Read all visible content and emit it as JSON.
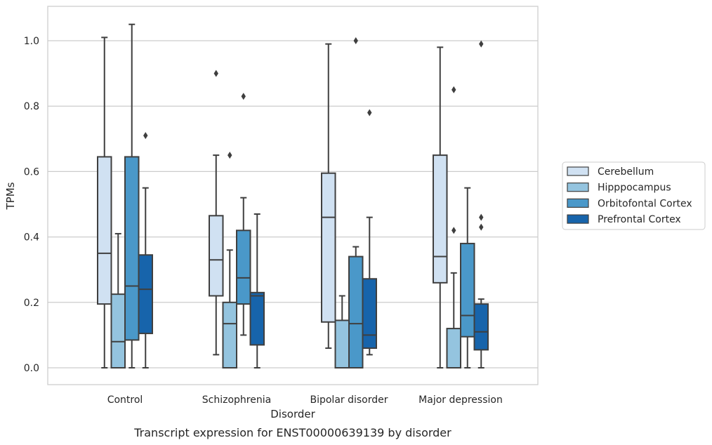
{
  "chart_data": {
    "type": "boxplot",
    "caption": "Transcript expression for ENST00000639139 by disorder",
    "xlabel": "Disorder",
    "ylabel": "TPMs",
    "ylim": [
      -0.05,
      1.1
    ],
    "yticks": [
      0.0,
      0.2,
      0.4,
      0.6,
      0.8,
      1.0
    ],
    "ytick_labels": [
      "0.0",
      "0.2",
      "0.4",
      "0.6",
      "0.8",
      "1.0"
    ],
    "grid": true,
    "legend_position": "right, outside plot",
    "categories": [
      "Control",
      "Schizophrenia",
      "Bipolar disorder",
      "Major depression"
    ],
    "series": [
      {
        "name": "Cerebellum",
        "color": "#d0e1f2",
        "boxes": [
          {
            "whisker_low": 0.0,
            "q1": 0.195,
            "median": 0.35,
            "q3": 0.645,
            "whisker_high": 1.01,
            "outliers": []
          },
          {
            "whisker_low": 0.04,
            "q1": 0.22,
            "median": 0.33,
            "q3": 0.465,
            "whisker_high": 0.65,
            "outliers": [
              0.9
            ]
          },
          {
            "whisker_low": 0.06,
            "q1": 0.14,
            "median": 0.46,
            "q3": 0.595,
            "whisker_high": 0.99,
            "outliers": []
          },
          {
            "whisker_low": 0.0,
            "q1": 0.26,
            "median": 0.34,
            "q3": 0.65,
            "whisker_high": 0.98,
            "outliers": []
          }
        ]
      },
      {
        "name": "Hipppocampus",
        "color": "#94c4df",
        "boxes": [
          {
            "whisker_low": 0.0,
            "q1": 0.0,
            "median": 0.08,
            "q3": 0.225,
            "whisker_high": 0.41,
            "outliers": []
          },
          {
            "whisker_low": 0.0,
            "q1": 0.0,
            "median": 0.135,
            "q3": 0.2,
            "whisker_high": 0.36,
            "outliers": [
              0.65
            ]
          },
          {
            "whisker_low": 0.0,
            "q1": 0.0,
            "median": 0.0,
            "q3": 0.145,
            "whisker_high": 0.22,
            "outliers": []
          },
          {
            "whisker_low": 0.0,
            "q1": 0.0,
            "median": 0.0,
            "q3": 0.12,
            "whisker_high": 0.29,
            "outliers": [
              0.42,
              0.85
            ]
          }
        ]
      },
      {
        "name": "Orbitofontal Cortex",
        "color": "#4a98c9",
        "boxes": [
          {
            "whisker_low": 0.0,
            "q1": 0.085,
            "median": 0.25,
            "q3": 0.645,
            "whisker_high": 1.05,
            "outliers": []
          },
          {
            "whisker_low": 0.1,
            "q1": 0.195,
            "median": 0.275,
            "q3": 0.42,
            "whisker_high": 0.52,
            "outliers": [
              0.83
            ]
          },
          {
            "whisker_low": 0.0,
            "q1": 0.0,
            "median": 0.135,
            "q3": 0.34,
            "whisker_high": 0.37,
            "outliers": [
              1.0
            ]
          },
          {
            "whisker_low": 0.0,
            "q1": 0.095,
            "median": 0.16,
            "q3": 0.38,
            "whisker_high": 0.55,
            "outliers": []
          }
        ]
      },
      {
        "name": "Prefrontal Cortex",
        "color": "#1764ab",
        "boxes": [
          {
            "whisker_low": 0.0,
            "q1": 0.105,
            "median": 0.24,
            "q3": 0.345,
            "whisker_high": 0.55,
            "outliers": [
              0.71
            ]
          },
          {
            "whisker_low": 0.0,
            "q1": 0.07,
            "median": 0.22,
            "q3": 0.23,
            "whisker_high": 0.47,
            "outliers": []
          },
          {
            "whisker_low": 0.04,
            "q1": 0.06,
            "median": 0.1,
            "q3": 0.272,
            "whisker_high": 0.46,
            "outliers": [
              0.78
            ]
          },
          {
            "whisker_low": 0.0,
            "q1": 0.055,
            "median": 0.11,
            "q3": 0.195,
            "whisker_high": 0.21,
            "outliers": [
              0.43,
              0.46,
              0.99
            ]
          }
        ]
      }
    ],
    "colors": {
      "grid": "#cccccc",
      "frame": "#cccccc",
      "box_line": "#3f3f3f"
    }
  }
}
